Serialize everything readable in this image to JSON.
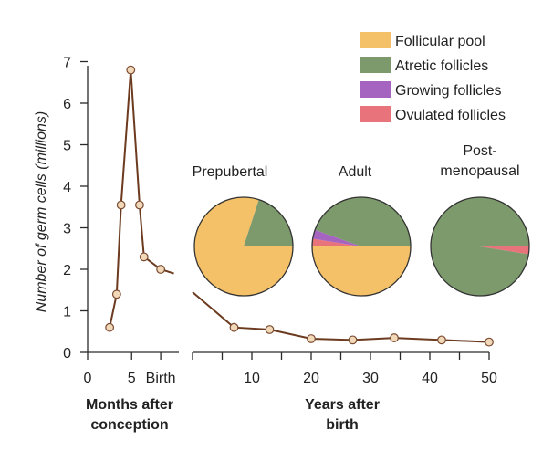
{
  "chart_data": [
    {
      "type": "line",
      "panel": "months-after-conception",
      "ylabel": "Number of germ cells (millions)",
      "ylim": [
        0,
        7
      ],
      "yticks": [
        0,
        1,
        2,
        3,
        4,
        5,
        6,
        7
      ],
      "xlim": [
        0,
        8.3
      ],
      "xticks": [
        0,
        5,
        8.3
      ],
      "xtick_labels": [
        "0",
        "5",
        "Birth"
      ],
      "xlabel": "Months after conception",
      "series": [
        {
          "name": "Germ cells",
          "x": [
            2.5,
            3.3,
            3.8,
            4.9,
            5.9,
            6.4,
            8.3
          ],
          "y": [
            0.6,
            1.4,
            3.55,
            6.8,
            3.55,
            2.3,
            2.0
          ],
          "trailing_to": [
            9.8,
            1.9
          ]
        }
      ]
    },
    {
      "type": "line",
      "panel": "years-after-birth",
      "ylim": [
        0,
        7
      ],
      "xlim": [
        0,
        50
      ],
      "xticks": [
        0,
        5,
        10,
        15,
        20,
        25,
        30,
        35,
        40,
        45,
        50
      ],
      "xtick_labels": [
        "",
        "",
        "10",
        "",
        "20",
        "",
        "30",
        "",
        "40",
        "",
        "50"
      ],
      "xlabel": "Years after birth",
      "series": [
        {
          "name": "Germ cells",
          "leading_from": [
            0,
            1.45
          ],
          "x": [
            7,
            13,
            20,
            27,
            34,
            42,
            50
          ],
          "y": [
            0.6,
            0.55,
            0.33,
            0.3,
            0.35,
            0.3,
            0.25
          ]
        }
      ]
    },
    {
      "type": "pie",
      "panels": [
        {
          "title": "Prepubertal",
          "slices": [
            {
              "label": "Follicular pool",
              "value": 80
            },
            {
              "label": "Atretic follicles",
              "value": 20
            },
            {
              "label": "Growing follicles",
              "value": 0
            },
            {
              "label": "Ovulated follicles",
              "value": 0
            }
          ]
        },
        {
          "title": "Adult",
          "slices": [
            {
              "label": "Follicular pool",
              "value": 50
            },
            {
              "label": "Atretic follicles",
              "value": 44.5
            },
            {
              "label": "Growing follicles",
              "value": 3
            },
            {
              "label": "Ovulated follicles",
              "value": 2.5
            }
          ]
        },
        {
          "title": "Post-\nmenopausal",
          "slices": [
            {
              "label": "Follicular pool",
              "value": 0
            },
            {
              "label": "Atretic follicles",
              "value": 97.5
            },
            {
              "label": "Growing follicles",
              "value": 0
            },
            {
              "label": "Ovulated follicles",
              "value": 2.5
            }
          ]
        }
      ],
      "legend": {
        "placement": "top-right",
        "entries": [
          {
            "label": "Follicular pool",
            "color": "#f4c068"
          },
          {
            "label": "Atretic follicles",
            "color": "#7d9a6c"
          },
          {
            "label": "Growing follicles",
            "color": "#a564c0"
          },
          {
            "label": "Ovulated follicles",
            "color": "#e8737a"
          }
        ]
      }
    }
  ],
  "colors": {
    "axis": "#2a2a2a",
    "line": "#6b3a1f",
    "marker_fill": "#f0d8b8",
    "marker_stroke": "#7a4a30",
    "pie_stroke": "#333333"
  }
}
